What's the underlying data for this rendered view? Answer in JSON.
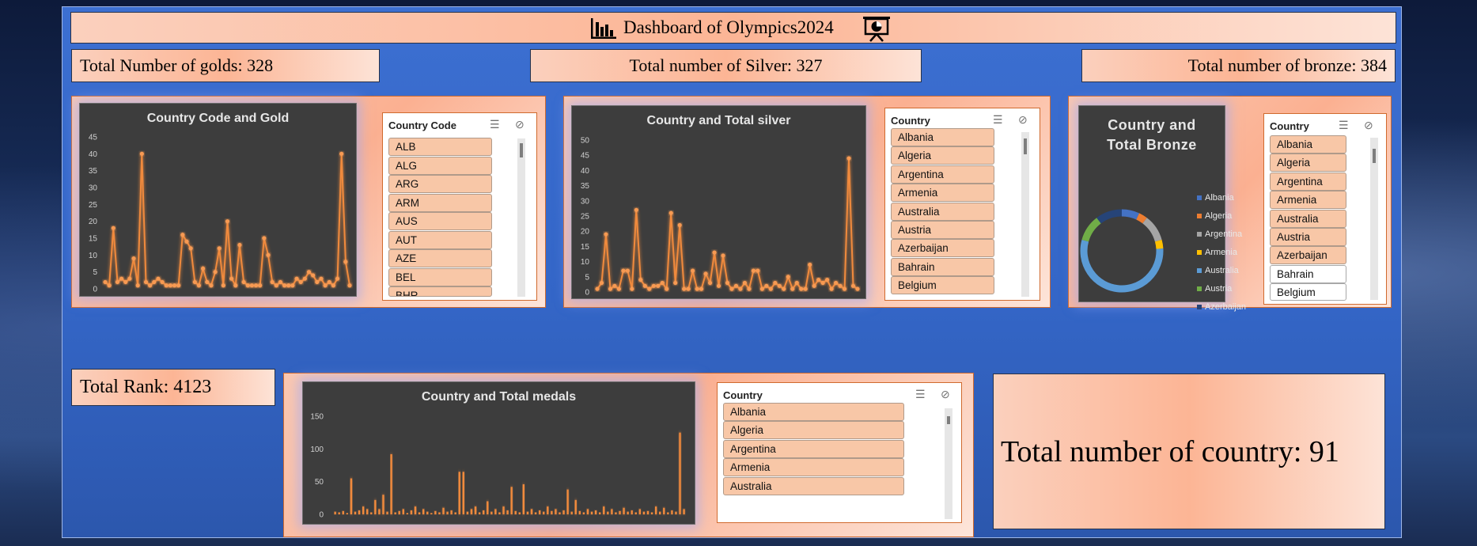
{
  "dashboard": {
    "title": "Dashboard of Olympics2024"
  },
  "kpis": {
    "golds": "Total Number of golds: 328",
    "silver": "Total number of Silver: 327",
    "bronze": "Total number of bronze: 384",
    "rank": "Total Rank: 4123",
    "countries": "Total number of country: 91"
  },
  "charts": {
    "gold": {
      "type": "line",
      "title": "Country Code and Gold",
      "y_ticks": [
        "0",
        "5",
        "10",
        "15",
        "20",
        "25",
        "30",
        "35",
        "40",
        "45"
      ],
      "ylim": [
        0,
        45
      ],
      "values": [
        2,
        1,
        18,
        2,
        3,
        2,
        3,
        9,
        1,
        40,
        2,
        1,
        2,
        3,
        2,
        1,
        1,
        1,
        1,
        16,
        14,
        12,
        2,
        1,
        6,
        2,
        1,
        5,
        12,
        1,
        20,
        3,
        1,
        13,
        2,
        1,
        1,
        1,
        1,
        15,
        10,
        2,
        1,
        2,
        1,
        1,
        1,
        3,
        2,
        3,
        5,
        4,
        2,
        3,
        1,
        2,
        1,
        3,
        40,
        8,
        1
      ]
    },
    "silver": {
      "type": "line",
      "title": "Country and Total silver",
      "y_ticks": [
        "0",
        "5",
        "10",
        "15",
        "20",
        "25",
        "30",
        "35",
        "40",
        "45",
        "50"
      ],
      "ylim": [
        0,
        50
      ],
      "values": [
        1,
        3,
        19,
        1,
        2,
        1,
        7,
        7,
        1,
        27,
        4,
        2,
        1,
        2,
        2,
        3,
        1,
        26,
        3,
        22,
        1,
        1,
        7,
        1,
        1,
        6,
        3,
        13,
        2,
        12,
        3,
        1,
        2,
        1,
        3,
        1,
        7,
        7,
        1,
        2,
        1,
        3,
        2,
        1,
        5,
        1,
        3,
        1,
        1,
        9,
        2,
        4,
        3,
        4,
        1,
        3,
        2,
        1,
        44,
        2,
        1
      ]
    },
    "bronze": {
      "type": "pie",
      "title": "Country and Total Bronze",
      "legend": [
        {
          "name": "Albania",
          "color": "#4472c4"
        },
        {
          "name": "Algeria",
          "color": "#ed7d31"
        },
        {
          "name": "Argentina",
          "color": "#a5a5a5"
        },
        {
          "name": "Armenia",
          "color": "#ffc000"
        },
        {
          "name": "Australia",
          "color": "#5b9bd5"
        },
        {
          "name": "Austria",
          "color": "#70ad47"
        },
        {
          "name": "Azerbaijan",
          "color": "#264478"
        }
      ],
      "segments": [
        {
          "name": "Albania",
          "value": 2,
          "color": "#4472c4"
        },
        {
          "name": "Algeria",
          "value": 1,
          "color": "#ed7d31"
        },
        {
          "name": "Argentina",
          "value": 3,
          "color": "#a5a5a5"
        },
        {
          "name": "Armenia",
          "value": 1,
          "color": "#ffc000"
        },
        {
          "name": "Australia",
          "value": 16,
          "color": "#5b9bd5"
        },
        {
          "name": "Austria",
          "value": 3,
          "color": "#70ad47"
        },
        {
          "name": "Azerbaijan",
          "value": 3,
          "color": "#264478"
        }
      ]
    },
    "medals": {
      "type": "bar",
      "title": "Country and Total medals",
      "y_ticks": [
        "0",
        "50",
        "100",
        "150"
      ],
      "ylim": [
        0,
        150
      ],
      "values": [
        4,
        3,
        5,
        2,
        55,
        4,
        6,
        12,
        8,
        3,
        22,
        8,
        30,
        4,
        92,
        3,
        5,
        8,
        2,
        6,
        12,
        3,
        8,
        4,
        2,
        5,
        3,
        10,
        4,
        6,
        3,
        65,
        65,
        4,
        8,
        12,
        3,
        6,
        20,
        4,
        8,
        3,
        12,
        6,
        42,
        5,
        3,
        46,
        4,
        8,
        3,
        6,
        4,
        12,
        5,
        8,
        3,
        6,
        38,
        4,
        22,
        5,
        3,
        8,
        4,
        6,
        3,
        12,
        4,
        8,
        3,
        5,
        10,
        4,
        6,
        3,
        8,
        4,
        5,
        3,
        12,
        4,
        10,
        3,
        6,
        4,
        125,
        8
      ]
    }
  },
  "slicers": {
    "gold": {
      "title": "Country Code",
      "items": [
        "ALB",
        "ALG",
        "ARG",
        "ARM",
        "AUS",
        "AUT",
        "AZE",
        "BEL",
        "BHR"
      ]
    },
    "silver": {
      "title": "Country",
      "items": [
        "Albania",
        "Algeria",
        "Argentina",
        "Armenia",
        "Australia",
        "Austria",
        "Azerbaijan",
        "Bahrain",
        "Belgium"
      ]
    },
    "bronze": {
      "title": "Country",
      "items": [
        "Albania",
        "Algeria",
        "Argentina",
        "Armenia",
        "Australia",
        "Austria",
        "Azerbaijan",
        "Bahrain",
        "Belgium"
      ],
      "selected_count": 7
    },
    "medals": {
      "title": "Country",
      "items": [
        "Albania",
        "Algeria",
        "Argentina",
        "Armenia",
        "Australia"
      ]
    }
  },
  "icons": {
    "title_left": "bar-chart-icon",
    "title_right": "presentation-pie-icon",
    "multi_select": "multi-select-icon",
    "clear_filter": "clear-filter-icon"
  }
}
